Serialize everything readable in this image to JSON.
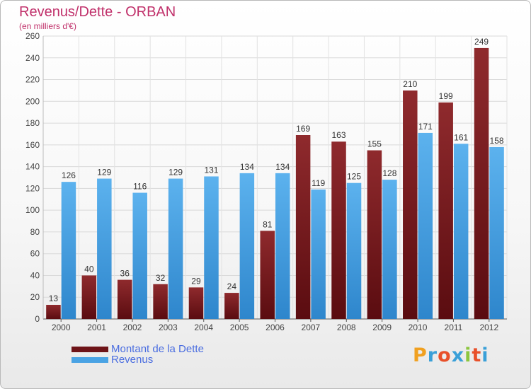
{
  "header": {
    "title": "Revenus/Dette - ORBAN",
    "subtitle": "(en milliers d'€)"
  },
  "legend": {
    "dette_label": "Montant de la Dette",
    "revenus_label": "Revenus"
  },
  "logo": {
    "letters": [
      "P",
      "r",
      "o",
      "x",
      "i",
      "t",
      "i"
    ],
    "colors": [
      "#f0a020",
      "#3aa0d8",
      "#e8502a",
      "#3aa0d8",
      "#8cc63f",
      "#e8502a",
      "#3aa0d8"
    ]
  },
  "colors": {
    "dette": "#7a1c1f",
    "revenus": "#4aa3e4",
    "title": "#c0306a"
  },
  "chart_data": {
    "type": "bar",
    "title": "Revenus/Dette - ORBAN",
    "subtitle": "(en milliers d'€)",
    "categories": [
      "2000",
      "2001",
      "2002",
      "2003",
      "2004",
      "2005",
      "2006",
      "2007",
      "2008",
      "2009",
      "2010",
      "2011",
      "2012"
    ],
    "series": [
      {
        "name": "Montant de la Dette",
        "values": [
          13,
          40,
          36,
          32,
          29,
          24,
          81,
          169,
          163,
          155,
          210,
          199,
          249
        ]
      },
      {
        "name": "Revenus",
        "values": [
          126,
          129,
          116,
          129,
          131,
          134,
          134,
          119,
          125,
          128,
          171,
          161,
          158
        ]
      }
    ],
    "ylim": [
      0,
      260
    ],
    "yticks": [
      0,
      20,
      40,
      60,
      80,
      100,
      120,
      140,
      160,
      180,
      200,
      220,
      240,
      260
    ],
    "grid": true,
    "legend_position": "bottom-left"
  }
}
